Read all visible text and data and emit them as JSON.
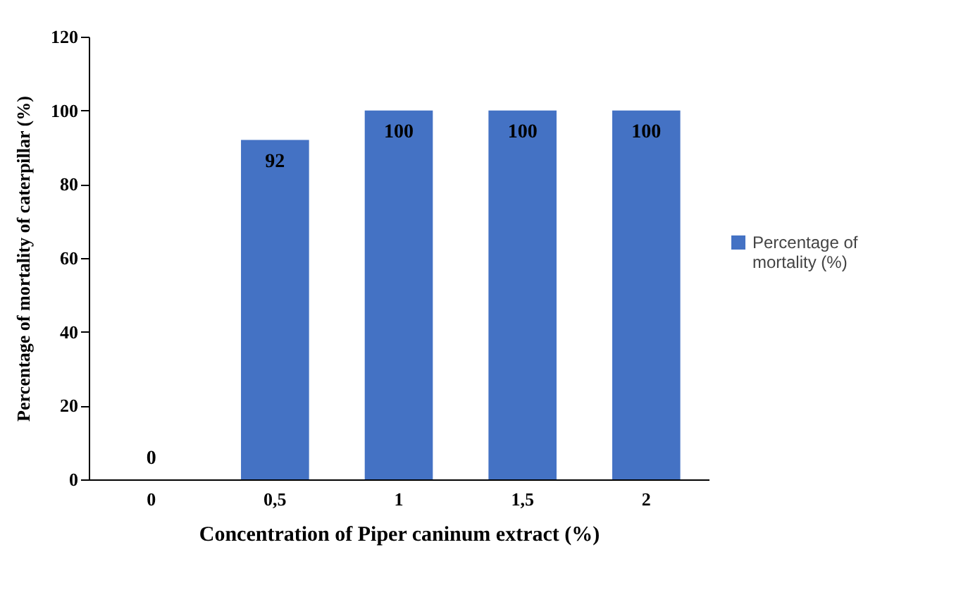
{
  "chart_data": {
    "type": "bar",
    "xlabel": "Concentration of Piper caninum extract (%)",
    "ylabel": "Percentage of mortality of caterpillar (%)",
    "categories": [
      "0",
      "0,5",
      "1",
      "1,5",
      "2"
    ],
    "series": [
      {
        "name": "Percentage of mortality (%)",
        "color": "#4472c4",
        "values": [
          0,
          92,
          100,
          100,
          100
        ]
      }
    ],
    "ylim": [
      0,
      120
    ],
    "yticks": [
      0,
      20,
      40,
      60,
      80,
      100,
      120
    ],
    "grid": false,
    "legend": "right",
    "data_labels": true
  }
}
